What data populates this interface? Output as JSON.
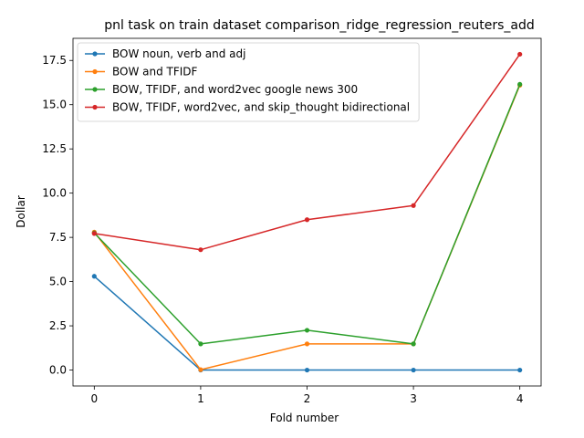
{
  "chart_data": {
    "type": "line",
    "title": "pnl task on train dataset comparison_ridge_regression_reuters_add",
    "xlabel": "Fold number",
    "ylabel": "Dollar",
    "x": [
      0,
      1,
      2,
      3,
      4
    ],
    "xticks": [
      0,
      1,
      2,
      3,
      4
    ],
    "xlim": [
      -0.2,
      4.2
    ],
    "ylim": [
      -0.9,
      18.75
    ],
    "yticks": [
      0.0,
      2.5,
      5.0,
      7.5,
      10.0,
      12.5,
      15.0,
      17.5
    ],
    "ytick_labels": [
      "0.0",
      "2.5",
      "5.0",
      "7.5",
      "10.0",
      "12.5",
      "15.0",
      "17.5"
    ],
    "grid": false,
    "legend_position": "top-left",
    "series": [
      {
        "name": "BOW noun, verb and adj",
        "color": "#1f77b4",
        "values": [
          5.3,
          0.0,
          0.0,
          0.0,
          0.0
        ]
      },
      {
        "name": "BOW and TFIDF",
        "color": "#ff7f0e",
        "values": [
          7.8,
          0.02,
          1.48,
          1.48,
          16.1
        ]
      },
      {
        "name": "BOW, TFIDF, and word2vec google news 300",
        "color": "#2ca02c",
        "values": [
          7.75,
          1.48,
          2.25,
          1.48,
          16.15
        ]
      },
      {
        "name": "BOW, TFIDF, word2vec, and skip_thought bidirectional",
        "color": "#d62728",
        "values": [
          7.72,
          6.8,
          8.5,
          9.3,
          17.85
        ]
      }
    ]
  }
}
